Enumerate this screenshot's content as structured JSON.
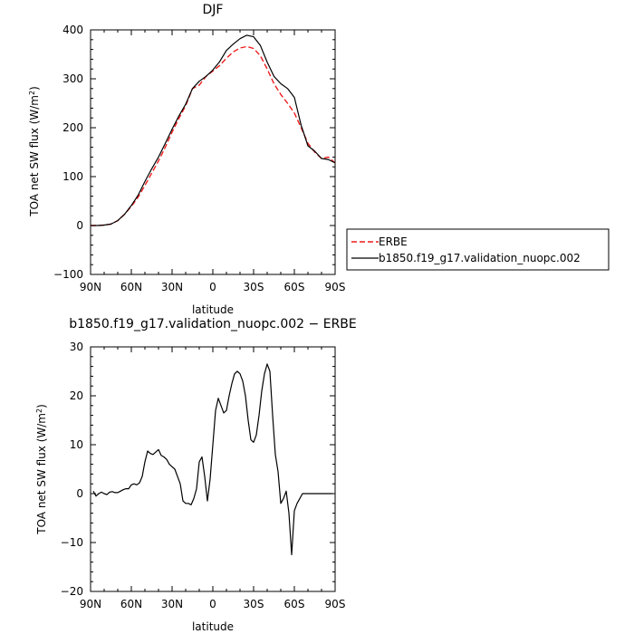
{
  "chart_data": [
    {
      "type": "line",
      "title": "DJF",
      "xlabel": "latitude",
      "ylabel_main": "TOA net SW flux (W/m",
      "ylabel_sup": "2",
      "ylabel_end": ")",
      "xlim": [
        90,
        -90
      ],
      "ylim": [
        -100,
        400
      ],
      "xticks": [
        90,
        60,
        30,
        0,
        -30,
        -60,
        -90
      ],
      "xtick_labels": [
        "90N",
        "60N",
        "30N",
        "0",
        "30S",
        "60S",
        "90S"
      ],
      "yticks": [
        -100,
        0,
        100,
        200,
        300,
        400
      ],
      "ytick_labels": [
        "−100",
        "0",
        "100",
        "200",
        "300",
        "400"
      ],
      "legend_position": "right",
      "series": [
        {
          "name": "ERBE",
          "color": "#ee1c1c",
          "dash": "dashed",
          "x": [
            90,
            85,
            80,
            75,
            70,
            65,
            60,
            55,
            50,
            45,
            40,
            35,
            30,
            25,
            20,
            15,
            10,
            5,
            0,
            -5,
            -10,
            -15,
            -20,
            -25,
            -30,
            -35,
            -40,
            -45,
            -50,
            -55,
            -60,
            -65,
            -70,
            -75,
            -80,
            -85,
            -90
          ],
          "values": [
            0,
            0,
            1,
            3,
            10,
            23,
            39,
            58,
            82,
            107,
            132,
            160,
            191,
            219,
            245,
            280,
            287,
            305,
            316,
            327,
            342,
            355,
            363,
            366,
            362,
            347,
            320,
            290,
            268,
            250,
            230,
            200,
            168,
            150,
            137,
            140,
            128
          ]
        },
        {
          "name": "b1850.f19_g17.validation_nuopc.002",
          "color": "#000000",
          "dash": "solid",
          "x": [
            90,
            85,
            80,
            75,
            70,
            65,
            60,
            55,
            50,
            45,
            40,
            35,
            30,
            25,
            20,
            15,
            10,
            5,
            0,
            -5,
            -10,
            -15,
            -20,
            -25,
            -30,
            -35,
            -40,
            -45,
            -50,
            -55,
            -60,
            -65,
            -70,
            -75,
            -80,
            -85,
            -90
          ],
          "values": [
            0,
            0,
            1,
            3,
            10,
            23,
            41,
            62,
            90,
            116,
            140,
            168,
            197,
            224,
            248,
            280,
            295,
            305,
            318,
            335,
            358,
            371,
            382,
            389,
            386,
            368,
            334,
            305,
            290,
            280,
            262,
            205,
            163,
            152,
            137,
            135,
            128
          ]
        }
      ]
    },
    {
      "type": "line",
      "title": "b1850.f19_g17.validation_nuopc.002 − ERBE",
      "xlabel": "latitude",
      "ylabel_main": "TOA net SW flux (W/m",
      "ylabel_sup": "2",
      "ylabel_end": ")",
      "xlim": [
        90,
        -90
      ],
      "ylim": [
        -20,
        30
      ],
      "xticks": [
        90,
        60,
        30,
        0,
        -30,
        -60,
        -90
      ],
      "xtick_labels": [
        "90N",
        "60N",
        "30N",
        "0",
        "30S",
        "60S",
        "90S"
      ],
      "yticks": [
        -20,
        -10,
        0,
        10,
        20,
        30
      ],
      "ytick_labels": [
        "−20",
        "−10",
        "0",
        "10",
        "20",
        "30"
      ],
      "series": [
        {
          "color": "#000000",
          "dash": "solid",
          "x": [
            88,
            86,
            84,
            82,
            80,
            78,
            76,
            74,
            72,
            70,
            68,
            66,
            64,
            62,
            60,
            58,
            56,
            54,
            52,
            50,
            48,
            46,
            44,
            42,
            40,
            38,
            36,
            34,
            32,
            30,
            28,
            26,
            24,
            22,
            20,
            18,
            16,
            14,
            12,
            10,
            8,
            6,
            4,
            2,
            0,
            -2,
            -4,
            -6,
            -8,
            -10,
            -12,
            -14,
            -16,
            -18,
            -20,
            -22,
            -24,
            -26,
            -28,
            -30,
            -32,
            -34,
            -36,
            -38,
            -40,
            -42,
            -44,
            -46,
            -48,
            -50,
            -52,
            -54,
            -56,
            -58,
            -60,
            -62,
            -64,
            -66,
            -68,
            -70,
            -72,
            -74,
            -76,
            -78,
            -80,
            -82,
            -84,
            -86,
            -88
          ],
          "values": [
            0.5,
            -0.5,
            0,
            0.3,
            0,
            -0.2,
            0.3,
            0.4,
            0.2,
            0.2,
            0.5,
            0.8,
            1.0,
            1.0,
            1.8,
            2.0,
            1.8,
            2.2,
            3.5,
            6.5,
            8.7,
            8.2,
            8.0,
            8.5,
            9.0,
            7.8,
            7.5,
            7.0,
            6.0,
            5.5,
            5.0,
            3.5,
            2.0,
            -1.5,
            -2.0,
            -2.0,
            -2.3,
            -1.0,
            1.0,
            6.5,
            7.5,
            3.5,
            -1.5,
            3.0,
            10.0,
            17.0,
            19.5,
            18.0,
            16.5,
            17.0,
            20.0,
            22.5,
            24.5,
            25.0,
            24.5,
            23.0,
            20.0,
            15.0,
            11.0,
            10.5,
            12.0,
            16.0,
            21.0,
            24.5,
            26.5,
            25.0,
            16.0,
            8.0,
            4.5,
            -2.0,
            -1.0,
            0.5,
            -4.0,
            -12.5,
            -3.5,
            -2.0,
            -1.0,
            0.0,
            0.0,
            0.0,
            0.0,
            0.0,
            0.0,
            0.0,
            0.0,
            0.0,
            0.0,
            0.0,
            0.0
          ]
        }
      ]
    }
  ]
}
